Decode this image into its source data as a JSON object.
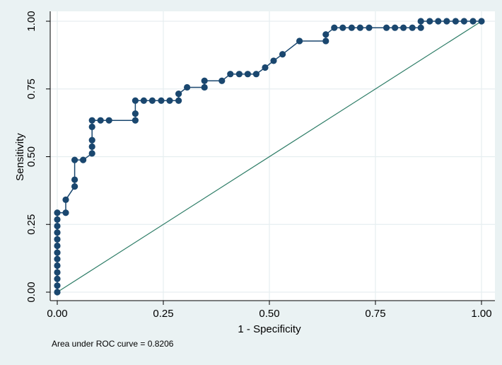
{
  "chart_data": {
    "type": "line",
    "xlabel": "1 - Specificity",
    "ylabel": "Sensitivity",
    "xlim": [
      0,
      1
    ],
    "ylim": [
      0,
      1
    ],
    "x_ticks": [
      "0.00",
      "0.25",
      "0.50",
      "0.75",
      "1.00"
    ],
    "y_ticks": [
      "0.00",
      "0.25",
      "0.50",
      "0.75",
      "1.00"
    ],
    "grid": true,
    "note": "Area under ROC curve = 0.8206",
    "colors": {
      "background": "#eaf2f3",
      "plot_area": "#ffffff",
      "grid": "#e6eef0",
      "roc_curve": "#1a476f",
      "reference_line": "#2e7d67"
    },
    "series": [
      {
        "values": [
          [
            0.0,
            0.0
          ],
          [
            0.0,
            0.024
          ],
          [
            0.0,
            0.049
          ],
          [
            0.0,
            0.073
          ],
          [
            0.0,
            0.098
          ],
          [
            0.0,
            0.122
          ],
          [
            0.0,
            0.146
          ],
          [
            0.0,
            0.171
          ],
          [
            0.0,
            0.195
          ],
          [
            0.0,
            0.22
          ],
          [
            0.0,
            0.244
          ],
          [
            0.0,
            0.268
          ],
          [
            0.0,
            0.293
          ],
          [
            0.02,
            0.293
          ],
          [
            0.02,
            0.341
          ],
          [
            0.041,
            0.39
          ],
          [
            0.041,
            0.415
          ],
          [
            0.041,
            0.488
          ],
          [
            0.061,
            0.488
          ],
          [
            0.082,
            0.512
          ],
          [
            0.082,
            0.537
          ],
          [
            0.082,
            0.561
          ],
          [
            0.082,
            0.61
          ],
          [
            0.082,
            0.634
          ],
          [
            0.102,
            0.634
          ],
          [
            0.122,
            0.634
          ],
          [
            0.184,
            0.634
          ],
          [
            0.184,
            0.659
          ],
          [
            0.184,
            0.707
          ],
          [
            0.204,
            0.707
          ],
          [
            0.224,
            0.707
          ],
          [
            0.245,
            0.707
          ],
          [
            0.265,
            0.707
          ],
          [
            0.286,
            0.707
          ],
          [
            0.286,
            0.732
          ],
          [
            0.306,
            0.756
          ],
          [
            0.347,
            0.756
          ],
          [
            0.347,
            0.78
          ],
          [
            0.388,
            0.78
          ],
          [
            0.408,
            0.805
          ],
          [
            0.429,
            0.805
          ],
          [
            0.449,
            0.805
          ],
          [
            0.469,
            0.805
          ],
          [
            0.49,
            0.829
          ],
          [
            0.51,
            0.854
          ],
          [
            0.531,
            0.878
          ],
          [
            0.571,
            0.927
          ],
          [
            0.633,
            0.927
          ],
          [
            0.633,
            0.951
          ],
          [
            0.653,
            0.976
          ],
          [
            0.673,
            0.976
          ],
          [
            0.694,
            0.976
          ],
          [
            0.714,
            0.976
          ],
          [
            0.735,
            0.976
          ],
          [
            0.776,
            0.976
          ],
          [
            0.796,
            0.976
          ],
          [
            0.816,
            0.976
          ],
          [
            0.837,
            0.976
          ],
          [
            0.857,
            0.976
          ],
          [
            0.857,
            1.0
          ],
          [
            0.878,
            1.0
          ],
          [
            0.898,
            1.0
          ],
          [
            0.918,
            1.0
          ],
          [
            0.939,
            1.0
          ],
          [
            0.959,
            1.0
          ],
          [
            0.98,
            1.0
          ],
          [
            1.0,
            1.0
          ]
        ]
      }
    ],
    "reference_line": [
      [
        0,
        0
      ],
      [
        1,
        1
      ]
    ]
  }
}
